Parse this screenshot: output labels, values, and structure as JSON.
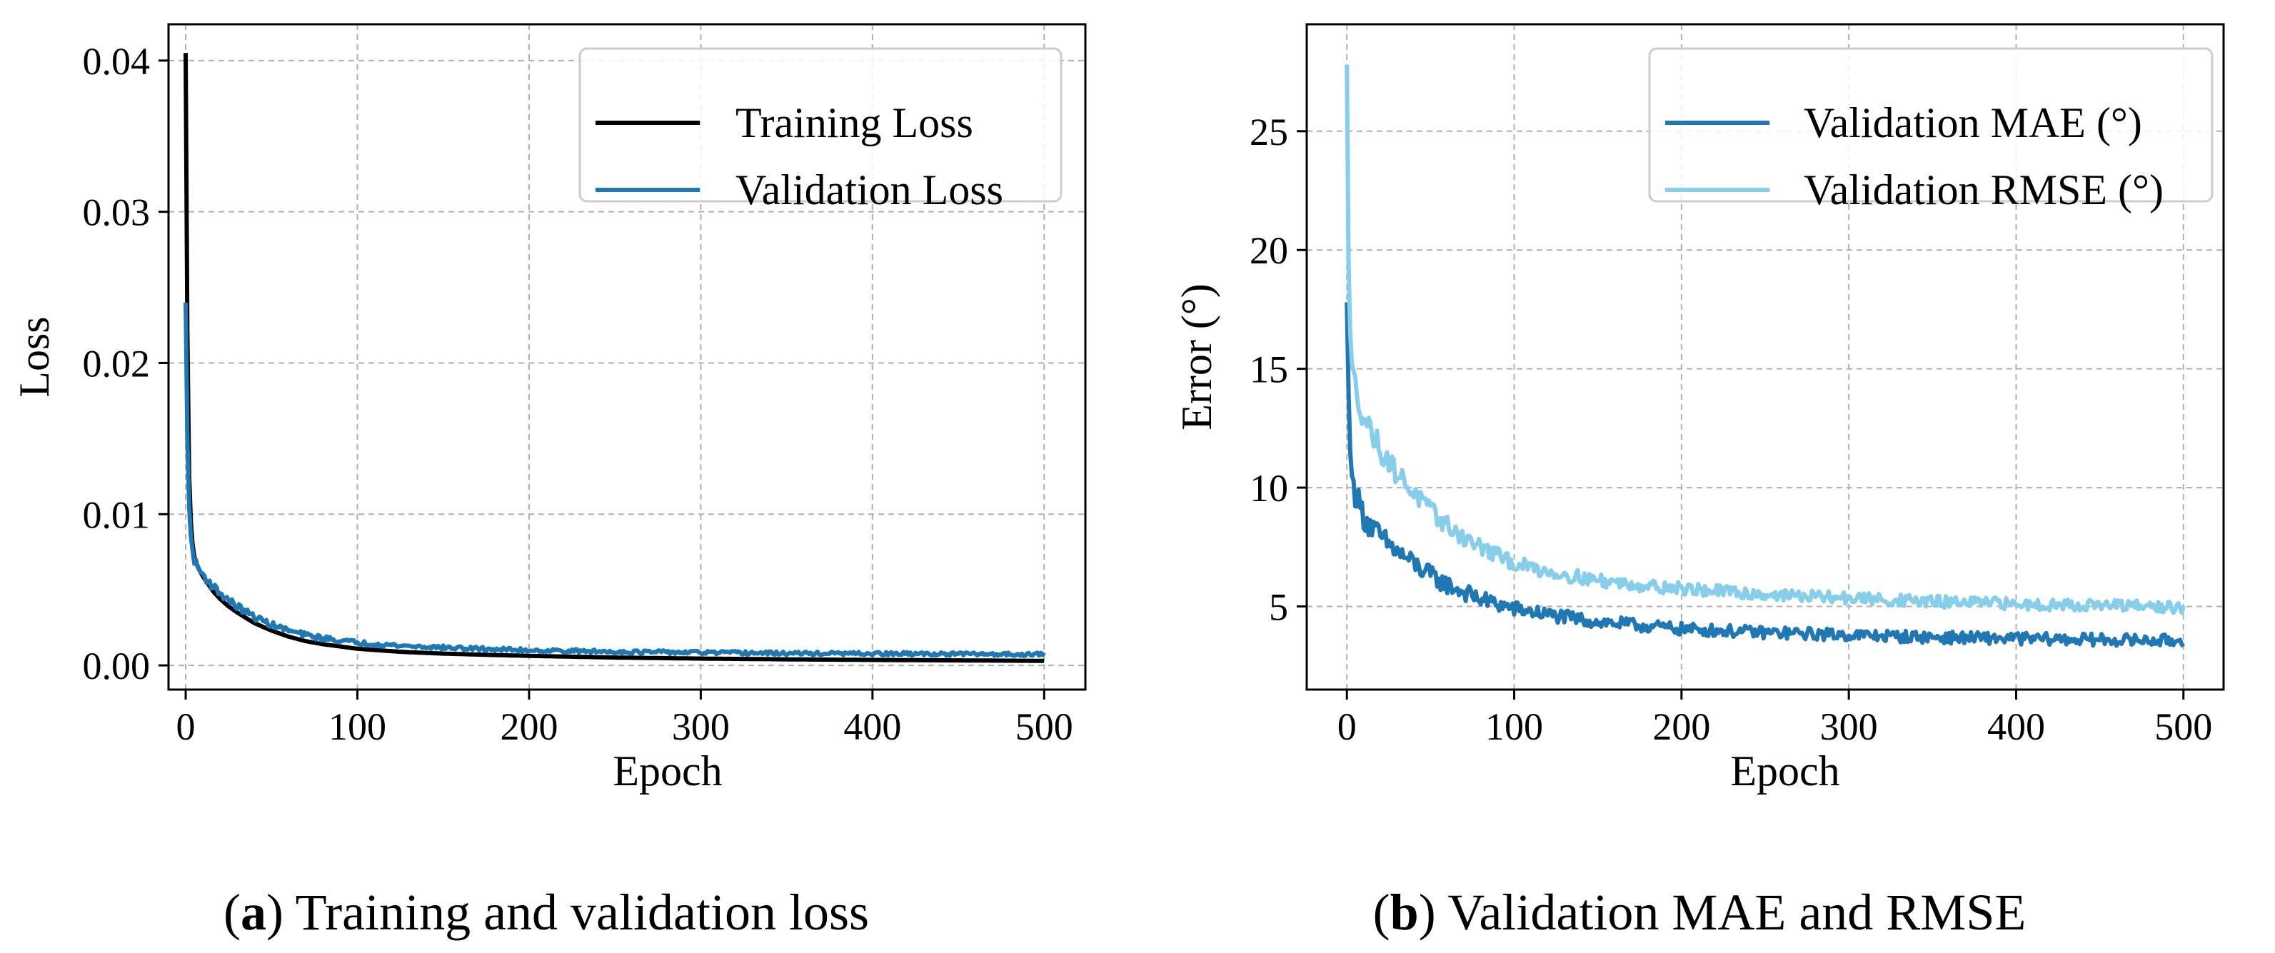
{
  "chart_data": [
    {
      "type": "line",
      "id": "a",
      "caption_label": "a",
      "caption_text": "Training and validation loss",
      "xlabel": "Epoch",
      "ylabel": "Loss",
      "xlim": [
        -10,
        524
      ],
      "ylim": [
        -0.0016,
        0.0424
      ],
      "xticks": [
        0,
        100,
        200,
        300,
        400,
        500
      ],
      "yticks": [
        0.0,
        0.01,
        0.02,
        0.03,
        0.04
      ],
      "ytick_labels": [
        "0.00",
        "0.01",
        "0.02",
        "0.03",
        "0.04"
      ],
      "grid": true,
      "legend_position": "top-right",
      "series": [
        {
          "name": "Training Loss",
          "color": "#000000",
          "noise": 0,
          "x": [
            0,
            1,
            2,
            3,
            4,
            5,
            6,
            8,
            10,
            13,
            16,
            20,
            25,
            30,
            40,
            50,
            60,
            70,
            80,
            100,
            125,
            150,
            175,
            200,
            250,
            300,
            350,
            400,
            450,
            500
          ],
          "y": [
            0.0405,
            0.022,
            0.0125,
            0.0095,
            0.008,
            0.0072,
            0.0068,
            0.0063,
            0.0059,
            0.0054,
            0.0049,
            0.0044,
            0.0039,
            0.0035,
            0.0028,
            0.0023,
            0.0019,
            0.0016,
            0.0014,
            0.0011,
            0.0009,
            0.00078,
            0.0007,
            0.00063,
            0.00052,
            0.00045,
            0.0004,
            0.00036,
            0.00033,
            0.0003
          ]
        },
        {
          "name": "Validation Loss",
          "color": "#1f77b4",
          "noise": 0.00012,
          "x": [
            0,
            1,
            2,
            3,
            4,
            5,
            6,
            8,
            10,
            13,
            16,
            20,
            25,
            30,
            40,
            50,
            60,
            70,
            80,
            100,
            125,
            150,
            175,
            200,
            250,
            300,
            350,
            400,
            450,
            500
          ],
          "y": [
            0.024,
            0.015,
            0.0105,
            0.0085,
            0.0075,
            0.007,
            0.0067,
            0.0063,
            0.006,
            0.0056,
            0.0052,
            0.0048,
            0.0043,
            0.0039,
            0.0032,
            0.0027,
            0.0023,
            0.002,
            0.0018,
            0.0015,
            0.0013,
            0.00118,
            0.00108,
            0.001,
            0.0009,
            0.00085,
            0.0008,
            0.00077,
            0.00075,
            0.00073
          ]
        }
      ]
    },
    {
      "type": "line",
      "id": "b",
      "caption_label": "b",
      "caption_text": "Validation MAE and RMSE",
      "xlabel": "Epoch",
      "ylabel": "Error (°)",
      "xlim": [
        -24,
        524
      ],
      "ylim": [
        1.5,
        29.5
      ],
      "xticks": [
        0,
        100,
        200,
        300,
        400,
        500
      ],
      "yticks": [
        5,
        10,
        15,
        20,
        25
      ],
      "ytick_labels": [
        "5",
        "10",
        "15",
        "20",
        "25"
      ],
      "grid": true,
      "legend_position": "top-right",
      "series": [
        {
          "name": "Validation MAE (°)",
          "color": "#1f77b4",
          "noise": 0.25,
          "x": [
            0,
            1,
            2,
            3,
            4,
            6,
            8,
            10,
            15,
            20,
            30,
            40,
            50,
            60,
            70,
            80,
            100,
            125,
            150,
            175,
            200,
            250,
            300,
            350,
            400,
            450,
            500
          ],
          "y": [
            17.8,
            14.0,
            11.5,
            10.5,
            10.0,
            9.6,
            9.2,
            8.8,
            8.3,
            7.9,
            7.3,
            6.8,
            6.3,
            5.9,
            5.6,
            5.3,
            4.9,
            4.6,
            4.35,
            4.2,
            4.05,
            3.9,
            3.8,
            3.7,
            3.65,
            3.6,
            3.55
          ]
        },
        {
          "name": "Validation RMSE (°)",
          "color": "#87ceeb",
          "noise": 0.25,
          "x": [
            0,
            1,
            2,
            3,
            4,
            6,
            8,
            10,
            15,
            20,
            30,
            40,
            50,
            60,
            70,
            80,
            100,
            125,
            150,
            175,
            200,
            250,
            300,
            350,
            400,
            450,
            500
          ],
          "y": [
            27.8,
            19.5,
            16.5,
            15.2,
            14.6,
            14.0,
            13.5,
            13.0,
            12.3,
            11.6,
            10.6,
            9.8,
            9.0,
            8.4,
            7.9,
            7.5,
            6.8,
            6.4,
            6.1,
            5.9,
            5.75,
            5.5,
            5.35,
            5.2,
            5.1,
            5.05,
            4.95
          ]
        }
      ]
    }
  ]
}
